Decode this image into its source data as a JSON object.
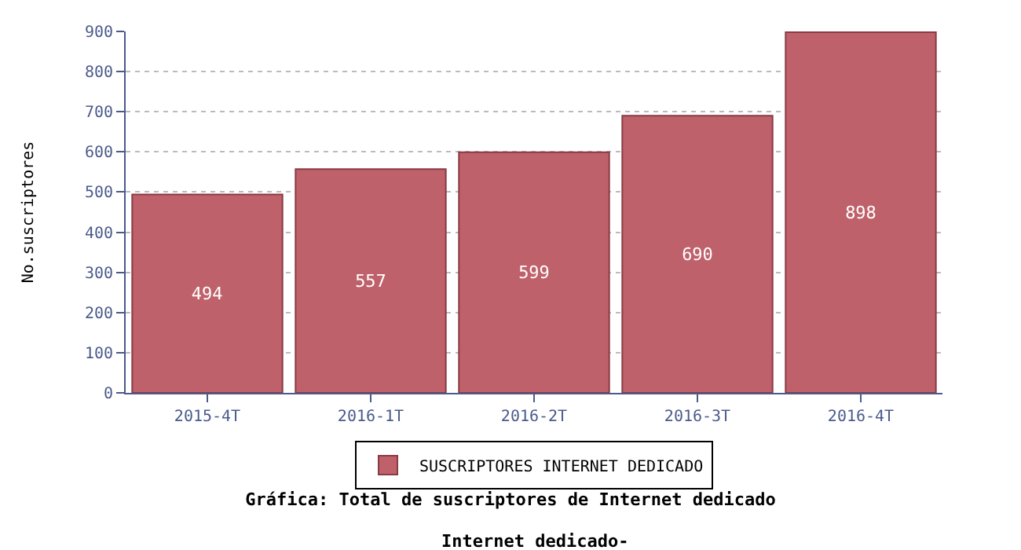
{
  "chart_data": {
    "type": "bar",
    "title": "Gráfica: Total de suscriptores de Internet dedicado",
    "subtitle": "Internet dedicado-",
    "ylabel": "No.suscriptores",
    "categories": [
      "2015-4T",
      "2016-1T",
      "2016-2T",
      "2016-3T",
      "2016-4T"
    ],
    "series": [
      {
        "name": "SUSCRIPTORES INTERNET DEDICADO",
        "color": "#bf616a",
        "values": [
          494,
          557,
          599,
          690,
          898
        ]
      }
    ],
    "ylim": [
      0,
      900
    ],
    "yticks": [
      0,
      100,
      200,
      300,
      400,
      500,
      600,
      700,
      800,
      900
    ],
    "grid": "y",
    "legend": "bottom",
    "data_labels": true
  }
}
